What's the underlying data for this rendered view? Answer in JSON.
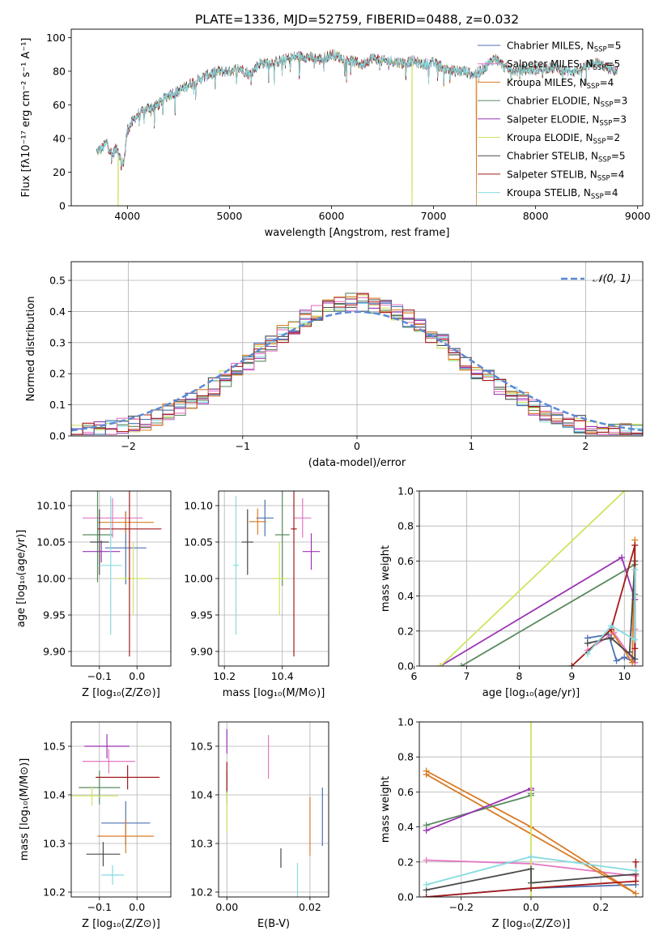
{
  "figure": {
    "title": "PLATE=1336, MJD=52759, FIBERID=0488, z=0.032",
    "colors": [
      "#4c72b0",
      "#e377c2",
      "#d97b26",
      "#5a8a60",
      "#9b35b3",
      "#cde560",
      "#4a4a4a",
      "#a51a1a",
      "#85dbe0"
    ]
  },
  "chart_data": [
    {
      "id": "spectrum",
      "type": "line",
      "title": "PLATE=1336, MJD=52759, FIBERID=0488, z=0.032",
      "xlabel": "wavelength [Angstrom, rest frame]",
      "ylabel": "Flux [fλ10⁻¹⁷ erg cm⁻² s⁻¹ A⁻¹]",
      "xlim": [
        3450,
        9050
      ],
      "ylim": [
        0,
        105
      ],
      "xticks": [
        4000,
        5000,
        6000,
        7000,
        8000,
        9000
      ],
      "yticks": [
        0,
        20,
        40,
        60,
        80,
        100
      ],
      "legend_position": "top-right",
      "legend": [
        "Chabrier MILES, N_SSP=5",
        "Salpeter MILES, N_SSP=5",
        "Kroupa MILES, N_SSP=4",
        "Chabrier ELODIE, N_SSP=3",
        "Salpeter ELODIE, N_SSP=3",
        "Kroupa ELODIE, N_SSP=2",
        "Chabrier STELIB, N_SSP=5",
        "Salpeter STELIB, N_SSP=4",
        "Kroupa STELIB, N_SSP=4"
      ],
      "continuum": {
        "x": [
          3700,
          3750,
          3800,
          3850,
          3900,
          3950,
          3970,
          4000,
          4050,
          4100,
          4200,
          4300,
          4400,
          4500,
          4600,
          4700,
          4800,
          4900,
          5000,
          5100,
          5200,
          5300,
          5400,
          5500,
          5600,
          5700,
          5800,
          5900,
          6000,
          6100,
          6200,
          6300,
          6400,
          6500,
          6600,
          6700,
          6800,
          6900,
          7000,
          7100,
          7200,
          7300,
          7400,
          7500,
          7600,
          7700,
          7800,
          7900,
          8000,
          8100,
          8200,
          8300,
          8400,
          8500,
          8600,
          8700,
          8800
        ],
        "y": [
          32,
          34,
          38,
          30,
          35,
          24,
          28,
          45,
          50,
          54,
          58,
          60,
          66,
          68,
          72,
          75,
          78,
          80,
          80,
          82,
          78,
          85,
          85,
          86,
          88,
          89,
          88,
          87,
          90,
          88,
          86,
          84,
          88,
          86,
          86,
          85,
          86,
          84,
          85,
          82,
          80,
          80,
          78,
          82,
          88,
          82,
          80,
          81,
          81,
          82,
          82,
          80,
          80,
          83,
          85,
          82,
          80
        ]
      },
      "dropouts": [
        {
          "series": 5,
          "x": 3910
        },
        {
          "series": 5,
          "x": 6790
        },
        {
          "series": 2,
          "x": 7420
        }
      ]
    },
    {
      "id": "residuals",
      "type": "histogram",
      "xlabel": "(data-model)/error",
      "ylabel": "Normed distribution",
      "xlim": [
        -2.5,
        2.5
      ],
      "ylim": [
        0,
        0.56
      ],
      "xticks": [
        -2,
        -1,
        0,
        1,
        2
      ],
      "yticks": [
        0.0,
        0.1,
        0.2,
        0.3,
        0.4,
        0.5
      ],
      "grid": true,
      "bin_width": 0.1,
      "legend": "𝒩(0, 1)",
      "legend_position": "top-right"
    },
    {
      "id": "age-vs-Z",
      "type": "scatter",
      "xlabel": "Z [log₁₀(Z/Z⊙)]",
      "ylabel": "age  [log₁₀(age/yr)]",
      "xlim": [
        -0.175,
        0.09
      ],
      "ylim": [
        9.88,
        10.12
      ],
      "xticks": [
        -0.1,
        0.0
      ],
      "yticks": [
        9.9,
        9.95,
        10.0,
        10.05,
        10.1
      ],
      "grid": true,
      "points": [
        {
          "x": -0.03,
          "y": 10.042,
          "xerr": 0.055,
          "yerr": 0.05
        },
        {
          "x": -0.065,
          "y": 10.083,
          "xerr": 0.08,
          "yerr": 0.027
        },
        {
          "x": -0.03,
          "y": 10.077,
          "xerr": 0.075,
          "yerr": 0.015
        },
        {
          "x": -0.105,
          "y": 10.06,
          "xerr": 0.04,
          "yerr": 0.065
        },
        {
          "x": -0.095,
          "y": 10.037,
          "xerr": 0.05,
          "yerr": 0.015
        },
        {
          "x": -0.01,
          "y": 10.0,
          "xerr": 0.04,
          "yerr": 0.05
        },
        {
          "x": -0.1,
          "y": 10.05,
          "xerr": 0.025,
          "yerr": 0.045
        },
        {
          "x": -0.02,
          "y": 10.068,
          "xerr": 0.085,
          "yerr": 0.175
        },
        {
          "x": -0.07,
          "y": 10.018,
          "xerr": 0.03,
          "yerr": 0.095
        }
      ]
    },
    {
      "id": "age-vs-mass",
      "type": "scatter",
      "xlabel": "mass [log₁₀(M/M⊙)]",
      "ylabel": "",
      "xlim": [
        10.18,
        10.56
      ],
      "ylim": [
        9.88,
        10.12
      ],
      "xticks": [
        10.2,
        10.4
      ],
      "yticks": [
        9.9,
        9.95,
        10.0,
        10.05,
        10.1
      ],
      "grid": true,
      "points": [
        {
          "x": 10.34,
          "y": 10.083,
          "xerr": 0.03,
          "yerr": 0.025
        },
        {
          "x": 10.47,
          "y": 10.083,
          "xerr": 0.03,
          "yerr": 0.027
        },
        {
          "x": 10.315,
          "y": 10.078,
          "xerr": 0.03,
          "yerr": 0.018
        },
        {
          "x": 10.4,
          "y": 10.06,
          "xerr": 0.025,
          "yerr": 0.07
        },
        {
          "x": 10.5,
          "y": 10.037,
          "xerr": 0.03,
          "yerr": 0.025
        },
        {
          "x": 10.39,
          "y": 10.0,
          "xerr": 0.025,
          "yerr": 0.05
        },
        {
          "x": 10.28,
          "y": 10.05,
          "xerr": 0.02,
          "yerr": 0.045
        },
        {
          "x": 10.44,
          "y": 10.068,
          "xerr": 0.01,
          "yerr": 0.175
        },
        {
          "x": 10.24,
          "y": 10.018,
          "xerr": 0.01,
          "yerr": 0.095
        }
      ]
    },
    {
      "id": "weight-vs-age",
      "type": "line",
      "xlabel": "age  [log₁₀(age/yr)]",
      "ylabel": "mass weight",
      "xlim": [
        6.1,
        10.35
      ],
      "ylim": [
        0,
        1.0
      ],
      "xticks": [
        6,
        7,
        8,
        9,
        10
      ],
      "yticks": [
        0.0,
        0.2,
        0.4,
        0.6,
        0.8,
        1.0
      ],
      "grid": true,
      "series": [
        {
          "x": [
            9.3,
            9.7,
            9.85,
            10.0,
            10.2
          ],
          "y": [
            0.16,
            0.18,
            0.03,
            0.05,
            0.02
          ]
        },
        {
          "x": [
            9.3,
            9.8,
            10.2,
            10.2
          ],
          "y": [
            0.09,
            0.19,
            0.02,
            0.21
          ]
        },
        {
          "x": [
            9.75,
            10.15,
            10.2
          ],
          "y": [
            0.2,
            0.02,
            0.72
          ]
        },
        {
          "x": [
            6.9,
            10.2,
            10.2
          ],
          "y": [
            0.0,
            0.58,
            0.41
          ]
        },
        {
          "x": [
            6.5,
            9.95,
            10.2
          ],
          "y": [
            0.0,
            0.62,
            0.38
          ]
        },
        {
          "x": [
            6.5,
            10.0
          ],
          "y": [
            0.0,
            1.0
          ]
        },
        {
          "x": [
            9.3,
            9.75,
            10.2,
            10.2,
            10.1
          ],
          "y": [
            0.13,
            0.16,
            0.04,
            0.6,
            0.08
          ]
        },
        {
          "x": [
            9.0,
            9.75,
            10.2,
            10.2
          ],
          "y": [
            0.0,
            0.21,
            0.69,
            0.1
          ]
        },
        {
          "x": [
            9.3,
            9.75,
            10.2,
            10.2
          ],
          "y": [
            0.07,
            0.23,
            0.15,
            0.55
          ]
        }
      ]
    },
    {
      "id": "mass-vs-Z",
      "type": "scatter",
      "xlabel": "Z [log₁₀(Z/Z⊙)]",
      "ylabel": "mass [log₁₀(M/M⊙)]",
      "xlim": [
        -0.175,
        0.09
      ],
      "ylim": [
        10.19,
        10.55
      ],
      "xticks": [
        -0.1,
        0.0
      ],
      "yticks": [
        10.2,
        10.3,
        10.4,
        10.5
      ],
      "grid": true,
      "points": [
        {
          "x": -0.03,
          "y": 10.342,
          "xerr": 0.065,
          "yerr": 0.045
        },
        {
          "x": -0.075,
          "y": 10.469,
          "xerr": 0.07,
          "yerr": 0.025
        },
        {
          "x": -0.03,
          "y": 10.315,
          "xerr": 0.075,
          "yerr": 0.035
        },
        {
          "x": -0.1,
          "y": 10.415,
          "xerr": 0.055,
          "yerr": 0.035
        },
        {
          "x": -0.08,
          "y": 10.5,
          "xerr": 0.06,
          "yerr": 0.025
        },
        {
          "x": -0.12,
          "y": 10.398,
          "xerr": 0.07,
          "yerr": 0.02
        },
        {
          "x": -0.09,
          "y": 10.278,
          "xerr": 0.045,
          "yerr": 0.025
        },
        {
          "x": -0.025,
          "y": 10.436,
          "xerr": 0.085,
          "yerr": 0.025
        },
        {
          "x": -0.065,
          "y": 10.235,
          "xerr": 0.03,
          "yerr": 0.02
        }
      ]
    },
    {
      "id": "mass-vs-ebv",
      "type": "scatter",
      "xlabel": "E(B-V)",
      "ylabel": "",
      "xlim": [
        -0.002,
        0.0245
      ],
      "ylim": [
        10.19,
        10.55
      ],
      "xticks": [
        0.0,
        0.02
      ],
      "yticks": [
        10.2,
        10.3,
        10.4,
        10.5
      ],
      "grid": true,
      "points": [
        {
          "x": 0.023,
          "y": 10.355,
          "xerr": 0,
          "yerr": 0.06
        },
        {
          "x": 0.01,
          "y": 10.478,
          "xerr": 0,
          "yerr": 0.045
        },
        {
          "x": 0.02,
          "y": 10.335,
          "xerr": 0,
          "yerr": 0.06
        },
        {
          "x": 0.0,
          "y": 10.415,
          "xerr": 0,
          "yerr": 0.035
        },
        {
          "x": 0.0,
          "y": 10.51,
          "xerr": 0,
          "yerr": 0.025
        },
        {
          "x": 0.0,
          "y": 10.365,
          "xerr": 0,
          "yerr": 0.04
        },
        {
          "x": 0.013,
          "y": 10.27,
          "xerr": 0,
          "yerr": 0.02
        },
        {
          "x": 0.0,
          "y": 10.438,
          "xerr": 0,
          "yerr": 0.03
        },
        {
          "x": 0.017,
          "y": 10.225,
          "xerr": 0,
          "yerr": 0.035
        }
      ]
    },
    {
      "id": "weight-vs-Z",
      "type": "line",
      "xlabel": "Z [log₁₀(Z/Z⊙)]",
      "ylabel": "mass weight",
      "xlim": [
        -0.32,
        0.32
      ],
      "ylim": [
        0,
        1.0
      ],
      "xticks": [
        -0.2,
        0.0,
        0.2
      ],
      "yticks": [
        0.0,
        0.2,
        0.4,
        0.6,
        0.8,
        1.0
      ],
      "grid": true,
      "series": [
        {
          "x": [
            -0.3,
            0.0,
            0.3
          ],
          "y": [
            0.0,
            0.05,
            0.07
          ]
        },
        {
          "x": [
            -0.3,
            0.0,
            0.3
          ],
          "y": [
            0.21,
            0.19,
            0.12
          ]
        },
        {
          "x": [
            -0.3,
            0.0,
            0.3,
            -0.3
          ],
          "y": [
            0.72,
            0.4,
            0.02,
            0.7
          ]
        },
        {
          "x": [
            -0.3,
            0.0,
            0.0
          ],
          "y": [
            0.41,
            0.58,
            0.59
          ]
        },
        {
          "x": [
            -0.3,
            0.0,
            0.0
          ],
          "y": [
            0.38,
            0.62,
            0.61
          ]
        },
        {
          "x": [
            0.0,
            0.0
          ],
          "y": [
            0.0,
            1.0
          ]
        },
        {
          "x": [
            -0.3,
            0.0,
            0.0,
            0.3
          ],
          "y": [
            0.04,
            0.16,
            0.08,
            0.13
          ]
        },
        {
          "x": [
            -0.3,
            0.0,
            0.3,
            0.3
          ],
          "y": [
            0.0,
            0.05,
            0.09,
            0.2
          ]
        },
        {
          "x": [
            -0.3,
            0.0,
            0.3
          ],
          "y": [
            0.07,
            0.23,
            0.15
          ]
        }
      ]
    }
  ]
}
